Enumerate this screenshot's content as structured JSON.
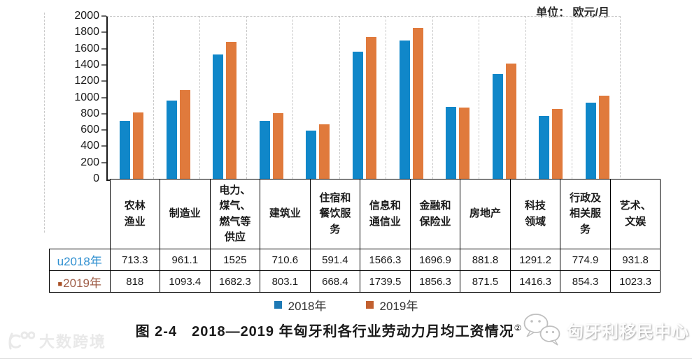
{
  "unit_label": "单位：  欧元/月",
  "caption": {
    "text": "图 2-4　2018—2019 年匈牙利各行业劳动力月均工资情况",
    "superscript": "②"
  },
  "legend": {
    "items": [
      {
        "label": "2018年",
        "color": "#1E79B5"
      },
      {
        "label": "2019年",
        "color": "#C26030"
      }
    ]
  },
  "colors": {
    "bar_2018": "#1087C9",
    "bar_2019": "#E07A3C",
    "axis": "#1a1a1a",
    "gridline": "#c9c9c9",
    "row_label_2018": "#2E8FD0",
    "row_label_2019": "#9E5C46",
    "row_marker_2019": "#A94E24"
  },
  "watermarks": {
    "left": {
      "text": "大数跨境"
    },
    "right": {
      "text": "匈牙利移民中心",
      "icon": "wechat-icon"
    }
  },
  "table": {
    "corner_label": "",
    "categories_display": [
      "农林\n渔业",
      "制造业",
      "电力、\n煤气、\n燃气等\n供应",
      "建筑业",
      "住宿和\n餐饮服\n务",
      "信息和\n通信业",
      "金融和\n保险业",
      "房地产",
      "科技\n领域",
      "行政及\n相关服\n务",
      "艺术、\n文娱"
    ],
    "rows": [
      {
        "marker": "u",
        "marker_color": "#2E8FD0",
        "label": "2018年",
        "label_color": "#2E8FD0",
        "values": [
          "713.3",
          "961.1",
          "1525",
          "710.6",
          "591.4",
          "1566.3",
          "1696.9",
          "881.8",
          "1291.2",
          "774.9",
          "931.8"
        ]
      },
      {
        "marker": "■",
        "marker_color": "#A94E24",
        "label": "2019年",
        "label_color": "#9E5C46",
        "values": [
          "818",
          "1093.4",
          "1682.3",
          "803.1",
          "668.4",
          "1739.5",
          "1856.3",
          "871.5",
          "1416.3",
          "854.3",
          "1023.3"
        ]
      }
    ]
  },
  "chart_data": {
    "type": "bar",
    "title": "2018—2019 年匈牙利各行业劳动力月均工资情况",
    "unit": "欧元/月",
    "categories": [
      "农林渔业",
      "制造业",
      "电力、煤气、燃气等供应",
      "建筑业",
      "住宿和餐饮服务",
      "信息和通信业",
      "金融和保险业",
      "房地产",
      "科技领域",
      "行政及相关服务",
      "艺术、文娱"
    ],
    "series": [
      {
        "name": "2018年",
        "color": "#1087C9",
        "values": [
          713.3,
          961.1,
          1525,
          710.6,
          591.4,
          1566.3,
          1696.9,
          881.8,
          1291.2,
          774.9,
          931.8
        ]
      },
      {
        "name": "2019年",
        "color": "#E07A3C",
        "values": [
          818,
          1093.4,
          1682.3,
          803.1,
          668.4,
          1739.5,
          1856.3,
          871.5,
          1416.3,
          854.3,
          1023.3
        ]
      }
    ],
    "ylim": [
      0,
      2000
    ],
    "ytick_step": 200,
    "grid": "vertical-dashed",
    "legend_position": "bottom"
  }
}
